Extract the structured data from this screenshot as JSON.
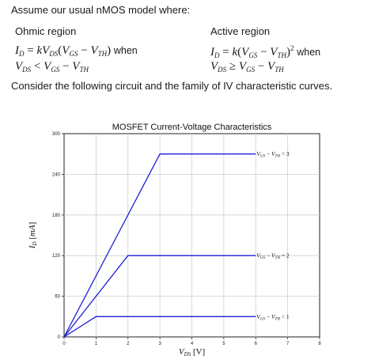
{
  "intro": "Assume our usual nMOS model where:",
  "ohmic": {
    "heading": "Ohmic region",
    "eq_left": "I",
    "eq_right": "kV",
    "cond": "when"
  },
  "active": {
    "heading": "Active region",
    "cond": "when"
  },
  "consider": "Consider the following circuit and the family of IV characteristic curves.",
  "chart_data": {
    "type": "line",
    "title": "MOSFET Current-Voltage Characteristics",
    "xlabel": "V_DS [V]",
    "ylabel": "I_D [mA]",
    "xlim": [
      0,
      8
    ],
    "ylim": [
      0,
      300
    ],
    "xticks": [
      0,
      1,
      2,
      3,
      4,
      5,
      6,
      7,
      8
    ],
    "yticks": [
      0,
      60,
      120,
      180,
      240,
      300
    ],
    "grid": true,
    "series": [
      {
        "name": "V_GS - V_TH = 1",
        "x": [
          0,
          1,
          6
        ],
        "y": [
          0,
          30,
          30
        ],
        "label": "1"
      },
      {
        "name": "V_GS - V_TH = 2",
        "x": [
          0,
          2,
          6
        ],
        "y": [
          0,
          120,
          120
        ],
        "label": "2"
      },
      {
        "name": "V_GS - V_TH = 3",
        "x": [
          0,
          3,
          6
        ],
        "y": [
          0,
          270,
          270
        ],
        "label": "3"
      }
    ],
    "line_color": "#1f1fd6"
  }
}
